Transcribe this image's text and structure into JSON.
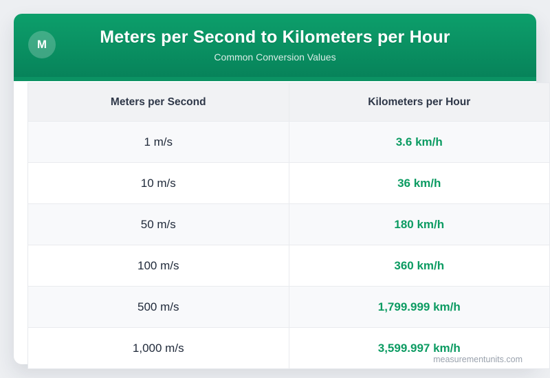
{
  "page": {
    "background_color": "#edeff2",
    "accent_green_top": "#0d9f6b",
    "accent_green_bottom": "#07835a",
    "value_green": "#0c9b62"
  },
  "header": {
    "badge_letter": "M",
    "title": "Meters per Second to Kilometers per Hour",
    "subtitle": "Common Conversion Values"
  },
  "table": {
    "columns": [
      "Meters per Second",
      "Kilometers per Hour"
    ],
    "rows": [
      {
        "ms": "1 m/s",
        "kmh": "3.6 km/h"
      },
      {
        "ms": "10 m/s",
        "kmh": "36 km/h"
      },
      {
        "ms": "50 m/s",
        "kmh": "180 km/h"
      },
      {
        "ms": "100 m/s",
        "kmh": "360 km/h"
      },
      {
        "ms": "500 m/s",
        "kmh": "1,799.999 km/h"
      },
      {
        "ms": "1,000 m/s",
        "kmh": "3,599.997 km/h"
      }
    ]
  },
  "watermark": "measurementunits.com"
}
